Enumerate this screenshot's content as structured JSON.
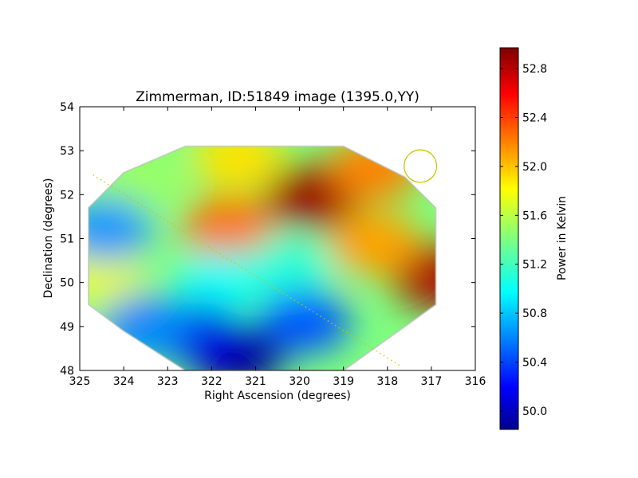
{
  "chart_data": {
    "type": "heatmap",
    "title": "Zimmerman, ID:51849 image (1395.0,YY)",
    "xlabel": "Right Ascension (degrees)",
    "ylabel": "Declination (degrees)",
    "xlim": [
      325,
      316
    ],
    "ylim": [
      48,
      54
    ],
    "xticks": [
      "325",
      "324",
      "323",
      "322",
      "321",
      "320",
      "319",
      "318",
      "317",
      "316"
    ],
    "yticks": [
      "48",
      "49",
      "50",
      "51",
      "52",
      "53",
      "54"
    ],
    "colorbar": {
      "label": "Power in Kelvin",
      "colormap": "jet",
      "range": [
        49.85,
        52.97
      ],
      "ticks": [
        "50.0",
        "50.4",
        "50.8",
        "51.2",
        "51.6",
        "52.0",
        "52.4",
        "52.8"
      ]
    },
    "field_outline_ra_dec": [
      [
        322.6,
        53.1
      ],
      [
        319.0,
        53.1
      ],
      [
        317.6,
        52.4
      ],
      [
        316.9,
        51.7
      ],
      [
        316.9,
        49.5
      ],
      [
        317.6,
        49.0
      ],
      [
        319.0,
        48.0
      ],
      [
        322.6,
        48.0
      ],
      [
        324.0,
        48.9
      ],
      [
        324.8,
        49.5
      ],
      [
        324.8,
        51.7
      ],
      [
        324.0,
        52.5
      ]
    ],
    "power_features": [
      {
        "ra": 319.7,
        "dec": 51.95,
        "kelvin": 52.9
      },
      {
        "ra": 316.9,
        "dec": 50.15,
        "kelvin": 52.85
      },
      {
        "ra": 321.6,
        "dec": 51.25,
        "kelvin": 52.25
      },
      {
        "ra": 318.3,
        "dec": 52.6,
        "kelvin": 52.2
      },
      {
        "ra": 318.3,
        "dec": 50.9,
        "kelvin": 52.1
      },
      {
        "ra": 321.4,
        "dec": 52.85,
        "kelvin": 51.9
      },
      {
        "ra": 323.7,
        "dec": 52.3,
        "kelvin": 51.5
      },
      {
        "ra": 324.6,
        "dec": 50.2,
        "kelvin": 51.75
      },
      {
        "ra": 324.4,
        "dec": 51.2,
        "kelvin": 50.65
      },
      {
        "ra": 321.8,
        "dec": 50.0,
        "kelvin": 51.0
      },
      {
        "ra": 320.3,
        "dec": 50.3,
        "kelvin": 51.1
      },
      {
        "ra": 319.9,
        "dec": 49.1,
        "kelvin": 50.45
      },
      {
        "ra": 321.4,
        "dec": 48.3,
        "kelvin": 49.85
      },
      {
        "ra": 322.3,
        "dec": 48.8,
        "kelvin": 50.1
      },
      {
        "ra": 323.5,
        "dec": 49.0,
        "kelvin": 50.6
      }
    ],
    "overlays": {
      "dotted_line_ra_dec": [
        [
          324.7,
          52.45
        ],
        [
          317.7,
          48.1
        ]
      ],
      "beam_circle_ra_dec": {
        "ra": 317.25,
        "dec": 52.65,
        "radius_deg": 0.37
      },
      "overlay_color": "#c8c800"
    }
  }
}
